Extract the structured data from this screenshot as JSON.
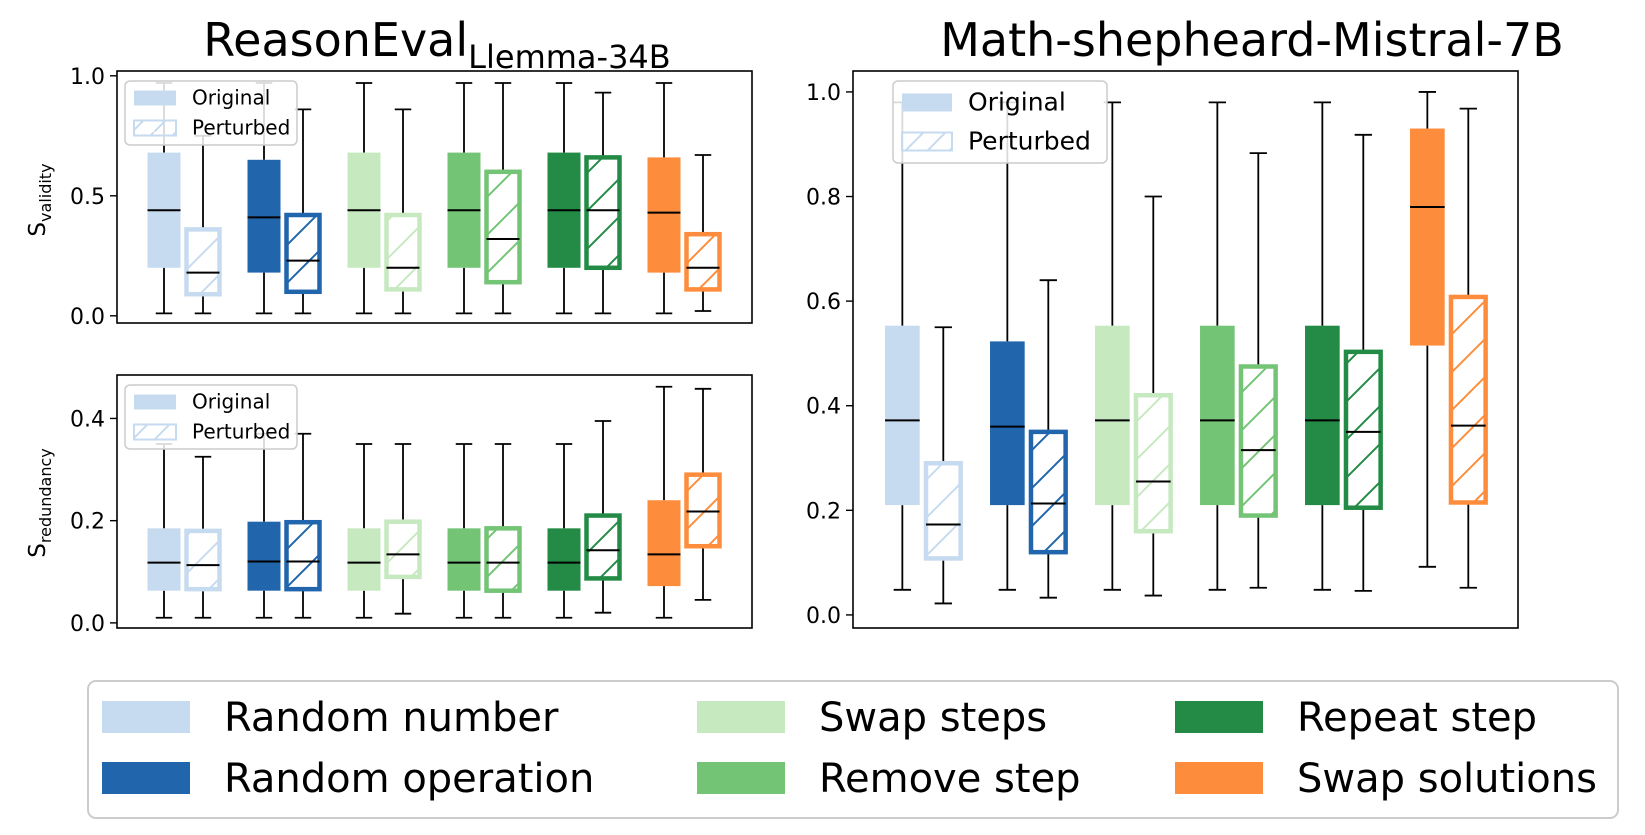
{
  "figure": {
    "legend": [
      {
        "label": "Random number",
        "color": "#c6dbef"
      },
      {
        "label": "Random operation",
        "color": "#2166ac"
      },
      {
        "label": "Swap steps",
        "color": "#c7e9c0"
      },
      {
        "label": "Remove step",
        "color": "#74c476"
      },
      {
        "label": "Repeat step",
        "color": "#238b45"
      },
      {
        "label": "Swap solutions",
        "color": "#fd8d3c"
      }
    ],
    "panel_legend": {
      "original": "Original",
      "perturbed": "Perturbed"
    }
  },
  "chart_data": [
    {
      "type": "box",
      "panel": "left-top",
      "title": "ReasonEval",
      "title_sub": "Llemma-34B",
      "ylabel": "S",
      "ylabel_sub": "validity",
      "ylim": [
        -0.03,
        1.02
      ],
      "yticks": [
        0.0,
        0.5,
        1.0
      ],
      "ytick_labels": [
        "0.0",
        "0.5",
        "1.0"
      ],
      "legend_position": "top-left",
      "categories": [
        "Random number",
        "Random operation",
        "Swap steps",
        "Remove step",
        "Repeat step",
        "Swap solutions"
      ],
      "series": [
        {
          "name": "Original",
          "boxes": [
            {
              "min": 0.01,
              "q1": 0.2,
              "median": 0.44,
              "q3": 0.68,
              "max": 0.97
            },
            {
              "min": 0.01,
              "q1": 0.18,
              "median": 0.41,
              "q3": 0.65,
              "max": 0.97
            },
            {
              "min": 0.01,
              "q1": 0.2,
              "median": 0.44,
              "q3": 0.68,
              "max": 0.97
            },
            {
              "min": 0.01,
              "q1": 0.2,
              "median": 0.44,
              "q3": 0.68,
              "max": 0.97
            },
            {
              "min": 0.01,
              "q1": 0.2,
              "median": 0.44,
              "q3": 0.68,
              "max": 0.97
            },
            {
              "min": 0.01,
              "q1": 0.18,
              "median": 0.43,
              "q3": 0.66,
              "max": 0.97
            }
          ]
        },
        {
          "name": "Perturbed",
          "boxes": [
            {
              "min": 0.01,
              "q1": 0.09,
              "median": 0.18,
              "q3": 0.36,
              "max": 0.75
            },
            {
              "min": 0.01,
              "q1": 0.1,
              "median": 0.23,
              "q3": 0.42,
              "max": 0.86
            },
            {
              "min": 0.01,
              "q1": 0.11,
              "median": 0.2,
              "q3": 0.42,
              "max": 0.86
            },
            {
              "min": 0.01,
              "q1": 0.14,
              "median": 0.32,
              "q3": 0.6,
              "max": 0.97
            },
            {
              "min": 0.01,
              "q1": 0.2,
              "median": 0.44,
              "q3": 0.66,
              "max": 0.93
            },
            {
              "min": 0.02,
              "q1": 0.11,
              "median": 0.2,
              "q3": 0.34,
              "max": 0.67
            }
          ]
        }
      ]
    },
    {
      "type": "box",
      "panel": "left-bottom",
      "ylabel": "S",
      "ylabel_sub": "redundancy",
      "ylim": [
        -0.01,
        0.485
      ],
      "yticks": [
        0.0,
        0.2,
        0.4
      ],
      "ytick_labels": [
        "0.0",
        "0.2",
        "0.4"
      ],
      "legend_position": "top-left",
      "categories": [
        "Random number",
        "Random operation",
        "Swap steps",
        "Remove step",
        "Repeat step",
        "Swap solutions"
      ],
      "series": [
        {
          "name": "Original",
          "boxes": [
            {
              "min": 0.01,
              "q1": 0.063,
              "median": 0.118,
              "q3": 0.185,
              "max": 0.35
            },
            {
              "min": 0.01,
              "q1": 0.063,
              "median": 0.12,
              "q3": 0.198,
              "max": 0.37
            },
            {
              "min": 0.01,
              "q1": 0.063,
              "median": 0.118,
              "q3": 0.185,
              "max": 0.35
            },
            {
              "min": 0.01,
              "q1": 0.063,
              "median": 0.118,
              "q3": 0.185,
              "max": 0.35
            },
            {
              "min": 0.01,
              "q1": 0.063,
              "median": 0.118,
              "q3": 0.185,
              "max": 0.35
            },
            {
              "min": 0.01,
              "q1": 0.072,
              "median": 0.134,
              "q3": 0.24,
              "max": 0.462
            }
          ]
        },
        {
          "name": "Perturbed",
          "boxes": [
            {
              "min": 0.01,
              "q1": 0.066,
              "median": 0.113,
              "q3": 0.18,
              "max": 0.325
            },
            {
              "min": 0.01,
              "q1": 0.066,
              "median": 0.12,
              "q3": 0.197,
              "max": 0.37
            },
            {
              "min": 0.018,
              "q1": 0.09,
              "median": 0.134,
              "q3": 0.198,
              "max": 0.35
            },
            {
              "min": 0.01,
              "q1": 0.063,
              "median": 0.118,
              "q3": 0.185,
              "max": 0.35
            },
            {
              "min": 0.02,
              "q1": 0.087,
              "median": 0.142,
              "q3": 0.21,
              "max": 0.395
            },
            {
              "min": 0.045,
              "q1": 0.15,
              "median": 0.218,
              "q3": 0.29,
              "max": 0.458
            }
          ]
        }
      ]
    },
    {
      "type": "box",
      "panel": "right",
      "title": "Math-shepheard-Mistral-7B",
      "ylim": [
        -0.025,
        1.04
      ],
      "yticks": [
        0.0,
        0.2,
        0.4,
        0.6,
        0.8,
        1.0
      ],
      "ytick_labels": [
        "0.0",
        "0.2",
        "0.4",
        "0.6",
        "0.8",
        "1.0"
      ],
      "legend_position": "top-left",
      "categories": [
        "Random number",
        "Random operation",
        "Swap steps",
        "Remove step",
        "Repeat step",
        "Swap solutions"
      ],
      "series": [
        {
          "name": "Original",
          "boxes": [
            {
              "min": 0.048,
              "q1": 0.21,
              "median": 0.372,
              "q3": 0.553,
              "max": 0.98
            },
            {
              "min": 0.048,
              "q1": 0.21,
              "median": 0.36,
              "q3": 0.523,
              "max": 0.98
            },
            {
              "min": 0.048,
              "q1": 0.21,
              "median": 0.372,
              "q3": 0.553,
              "max": 0.98
            },
            {
              "min": 0.048,
              "q1": 0.21,
              "median": 0.372,
              "q3": 0.553,
              "max": 0.98
            },
            {
              "min": 0.048,
              "q1": 0.21,
              "median": 0.372,
              "q3": 0.553,
              "max": 0.98
            },
            {
              "min": 0.092,
              "q1": 0.515,
              "median": 0.78,
              "q3": 0.93,
              "max": 1.0
            }
          ]
        },
        {
          "name": "Perturbed",
          "boxes": [
            {
              "min": 0.022,
              "q1": 0.108,
              "median": 0.173,
              "q3": 0.29,
              "max": 0.55
            },
            {
              "min": 0.033,
              "q1": 0.12,
              "median": 0.213,
              "q3": 0.35,
              "max": 0.64
            },
            {
              "min": 0.037,
              "q1": 0.16,
              "median": 0.255,
              "q3": 0.42,
              "max": 0.8
            },
            {
              "min": 0.052,
              "q1": 0.19,
              "median": 0.315,
              "q3": 0.475,
              "max": 0.883
            },
            {
              "min": 0.046,
              "q1": 0.205,
              "median": 0.35,
              "q3": 0.503,
              "max": 0.918
            },
            {
              "min": 0.052,
              "q1": 0.215,
              "median": 0.362,
              "q3": 0.608,
              "max": 0.968
            }
          ]
        }
      ]
    }
  ]
}
